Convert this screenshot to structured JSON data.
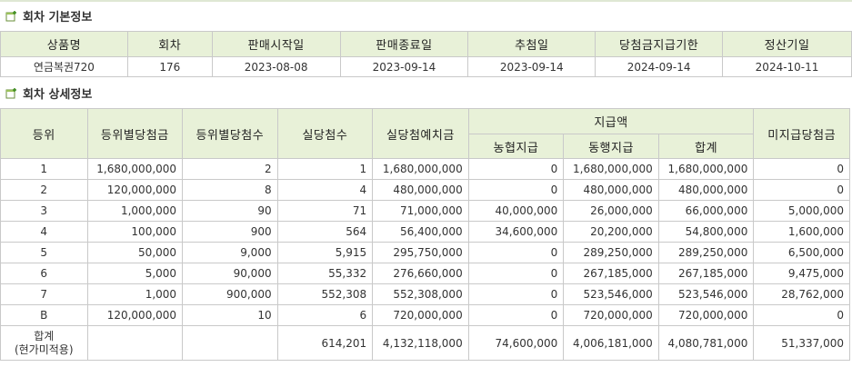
{
  "sections": {
    "basic_title": "회차 기본정보",
    "detail_title": "회차 상세정보"
  },
  "basic": {
    "headers": [
      "상품명",
      "회차",
      "판매시작일",
      "판매종료일",
      "추첨일",
      "당첨금지급기한",
      "정산기일"
    ],
    "row": [
      "연금복권720",
      "176",
      "2023-08-08",
      "2023-09-14",
      "2023-09-14",
      "2024-09-14",
      "2024-10-11"
    ]
  },
  "detail": {
    "headers": {
      "rank": "등위",
      "prize_per_rank": "등위별당첨금",
      "count_per_rank": "등위별당첨수",
      "actual_count": "실당첨수",
      "actual_deposit": "실당첨예치금",
      "payment": "지급액",
      "nonghyup": "농협지급",
      "bank": "동행지급",
      "total": "합계",
      "unpaid": "미지급당첨금"
    },
    "rows": [
      [
        "1",
        "1,680,000,000",
        "2",
        "1",
        "1,680,000,000",
        "0",
        "1,680,000,000",
        "1,680,000,000",
        "0"
      ],
      [
        "2",
        "120,000,000",
        "8",
        "4",
        "480,000,000",
        "0",
        "480,000,000",
        "480,000,000",
        "0"
      ],
      [
        "3",
        "1,000,000",
        "90",
        "71",
        "71,000,000",
        "40,000,000",
        "26,000,000",
        "66,000,000",
        "5,000,000"
      ],
      [
        "4",
        "100,000",
        "900",
        "564",
        "56,400,000",
        "34,600,000",
        "20,200,000",
        "54,800,000",
        "1,600,000"
      ],
      [
        "5",
        "50,000",
        "9,000",
        "5,915",
        "295,750,000",
        "0",
        "289,250,000",
        "289,250,000",
        "6,500,000"
      ],
      [
        "6",
        "5,000",
        "90,000",
        "55,332",
        "276,660,000",
        "0",
        "267,185,000",
        "267,185,000",
        "9,475,000"
      ],
      [
        "7",
        "1,000",
        "900,000",
        "552,308",
        "552,308,000",
        "0",
        "523,546,000",
        "523,546,000",
        "28,762,000"
      ],
      [
        "B",
        "120,000,000",
        "10",
        "6",
        "720,000,000",
        "0",
        "720,000,000",
        "720,000,000",
        "0"
      ]
    ],
    "summary": {
      "label_line1": "합계",
      "label_line2": "(현가미적용)",
      "values": [
        "",
        "",
        "614,201",
        "4,132,118,000",
        "74,600,000",
        "4,006,181,000",
        "4,080,781,000",
        "51,337,000"
      ]
    }
  }
}
